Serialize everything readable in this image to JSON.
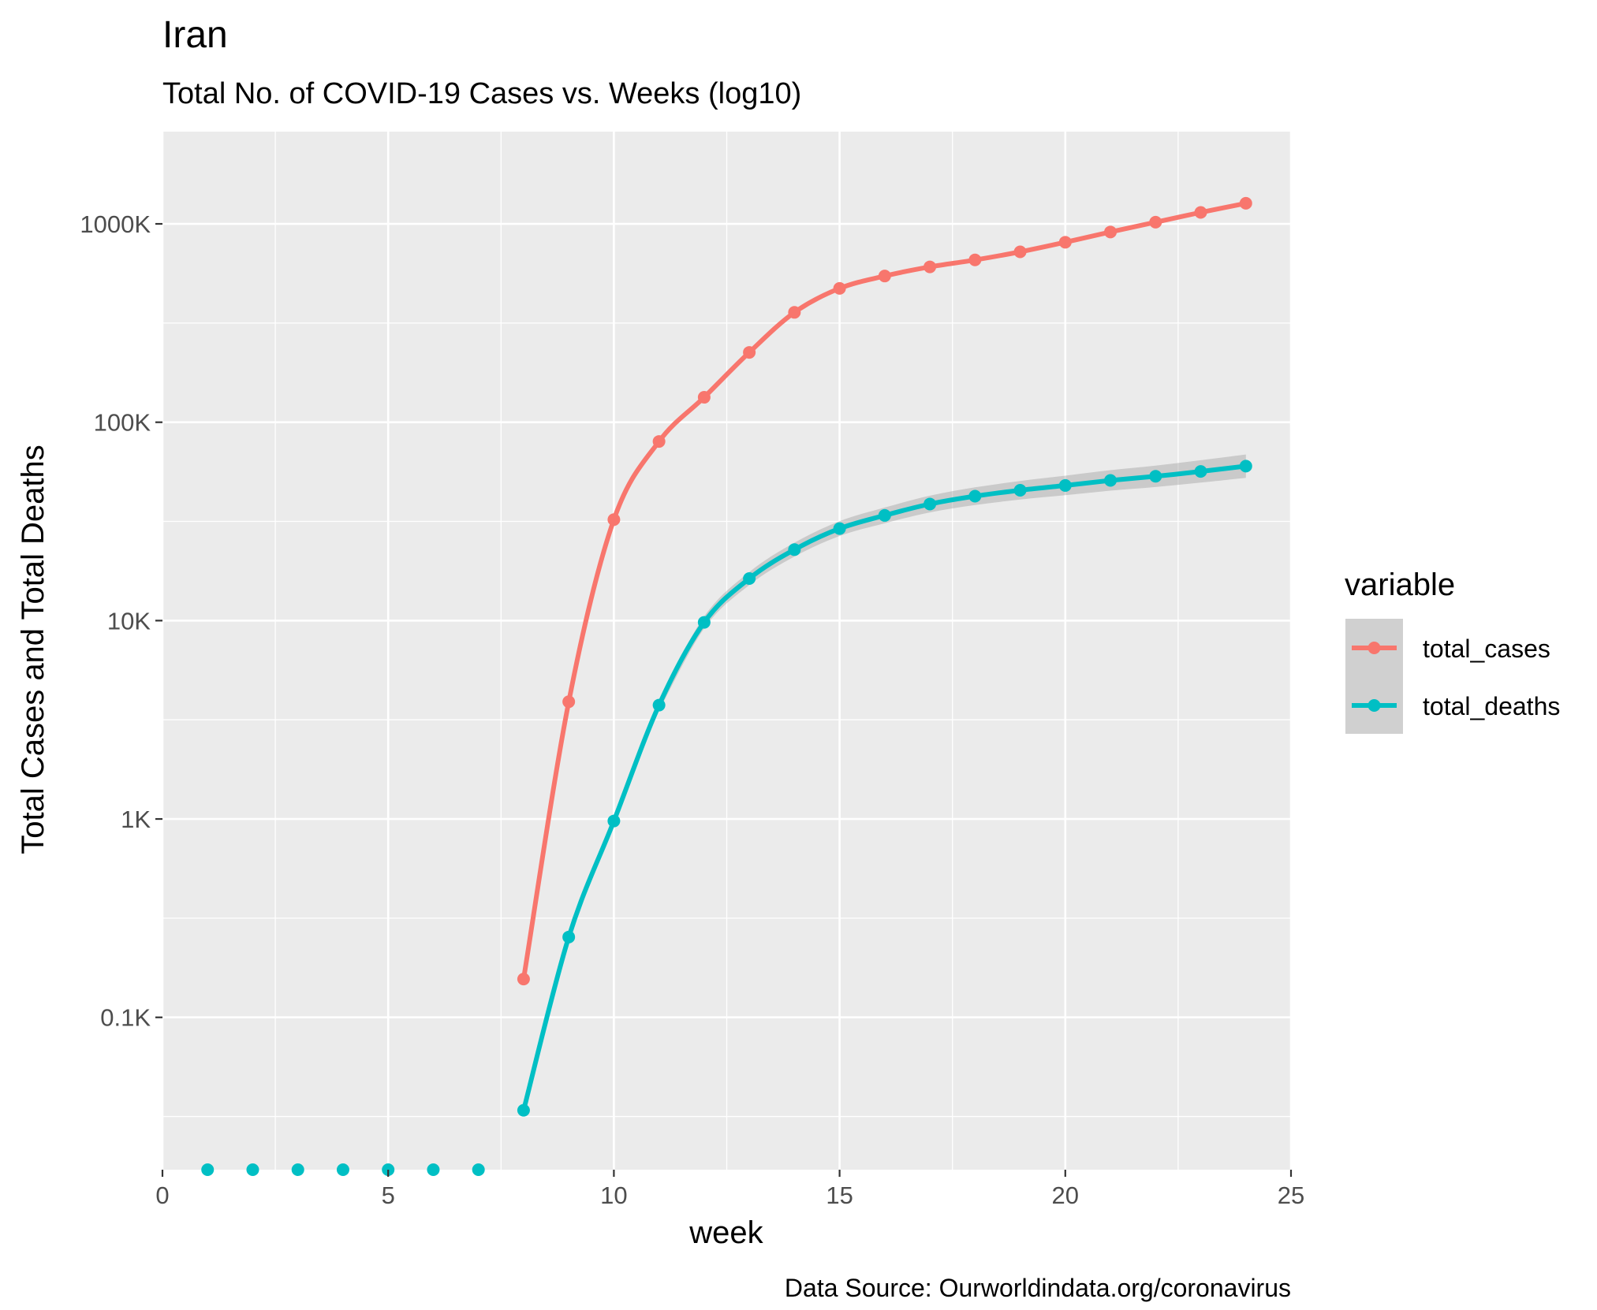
{
  "chart_data": {
    "type": "line",
    "title": "Iran",
    "subtitle": "Total No. of COVID-19 Cases vs. Weeks (log10)",
    "xlabel": "week",
    "ylabel": "Total Cases and Total Deaths",
    "caption": "Data Source: Ourworldindata.org/coronavirus",
    "y_scale": "log10",
    "xlim": [
      0,
      25
    ],
    "x_ticks": [
      0,
      5,
      10,
      15,
      20,
      25
    ],
    "x_tick_labels": [
      "0",
      "5",
      "10",
      "15",
      "20",
      "25"
    ],
    "y_ticks": [
      100,
      1000,
      10000,
      100000,
      1000000
    ],
    "y_tick_labels": [
      "0.1K",
      "1K",
      "10K",
      "100K",
      "1000K"
    ],
    "grid": true,
    "legend": {
      "title": "variable",
      "placement": "right",
      "entries": [
        "total_cases",
        "total_deaths"
      ]
    },
    "series": [
      {
        "name": "total_cases",
        "color": "#F8766D",
        "x": [
          8,
          9,
          10,
          11,
          12,
          13,
          14,
          15,
          16,
          17,
          18,
          19,
          20,
          21,
          22,
          23,
          24
        ],
        "values": [
          156,
          3900,
          32300,
          80000,
          133600,
          225000,
          358000,
          473000,
          546000,
          607000,
          658000,
          723000,
          808000,
          910000,
          1020000,
          1142000,
          1270000
        ]
      },
      {
        "name": "total_deaths",
        "color": "#00BFC4",
        "x": [
          1,
          2,
          3,
          4,
          5,
          6,
          7,
          8,
          9,
          10,
          11,
          12,
          13,
          14,
          15,
          16,
          17,
          18,
          19,
          20,
          21,
          22,
          23,
          24
        ],
        "values": [
          0,
          0,
          0,
          0,
          0,
          0,
          0,
          34,
          254,
          977,
          3750,
          9800,
          16300,
          22800,
          29100,
          33900,
          38700,
          42400,
          45400,
          48000,
          50900,
          53400,
          56500,
          60100
        ]
      }
    ]
  }
}
